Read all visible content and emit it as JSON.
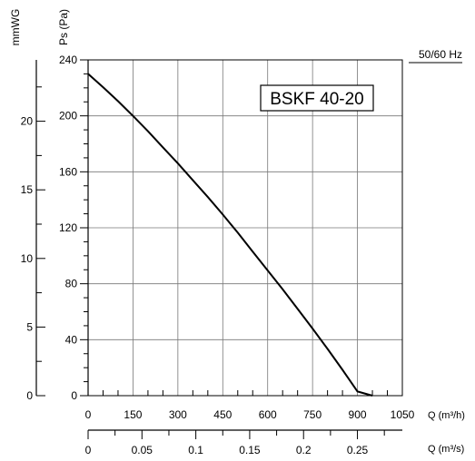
{
  "chart_data": {
    "type": "line",
    "title": "BSKF 40-20",
    "frequency_label": "50/60 Hz",
    "x_axis": {
      "label": "Q (m³/h)",
      "range": [
        0,
        1050
      ],
      "ticks": [
        0,
        150,
        300,
        450,
        600,
        750,
        900,
        1050
      ],
      "minor_step": 50
    },
    "x2_axis": {
      "label": "Q (m³/s)",
      "range": [
        0,
        0.2917
      ],
      "ticks": [
        0,
        0.05,
        0.1,
        0.15,
        0.2,
        0.25
      ],
      "tick_labels": [
        "0",
        "0.05",
        "0.1",
        "0.15",
        "0.2",
        "0.25"
      ],
      "minor_step": 0.025
    },
    "y_axis": {
      "label": "Ps (Pa)",
      "range": [
        0,
        240
      ],
      "ticks": [
        0,
        40,
        80,
        120,
        160,
        200,
        240
      ],
      "minor_step": 10
    },
    "y2_axis": {
      "label": "mmWG",
      "range": [
        0,
        24.47
      ],
      "ticks": [
        0,
        5,
        10,
        15,
        20
      ],
      "minor_step": 2.5
    },
    "grid": true,
    "series": [
      {
        "x": [
          0,
          50,
          100,
          150,
          200,
          250,
          300,
          350,
          400,
          450,
          500,
          550,
          600,
          650,
          700,
          750,
          800,
          850,
          900,
          950,
          1000
        ],
        "y": [
          230,
          220.5,
          210.5,
          200,
          189,
          177.5,
          166,
          154,
          142,
          129.5,
          116.5,
          103,
          89.5,
          76,
          62,
          48,
          33.5,
          18.5,
          3,
          0,
          0
        ]
      }
    ]
  }
}
